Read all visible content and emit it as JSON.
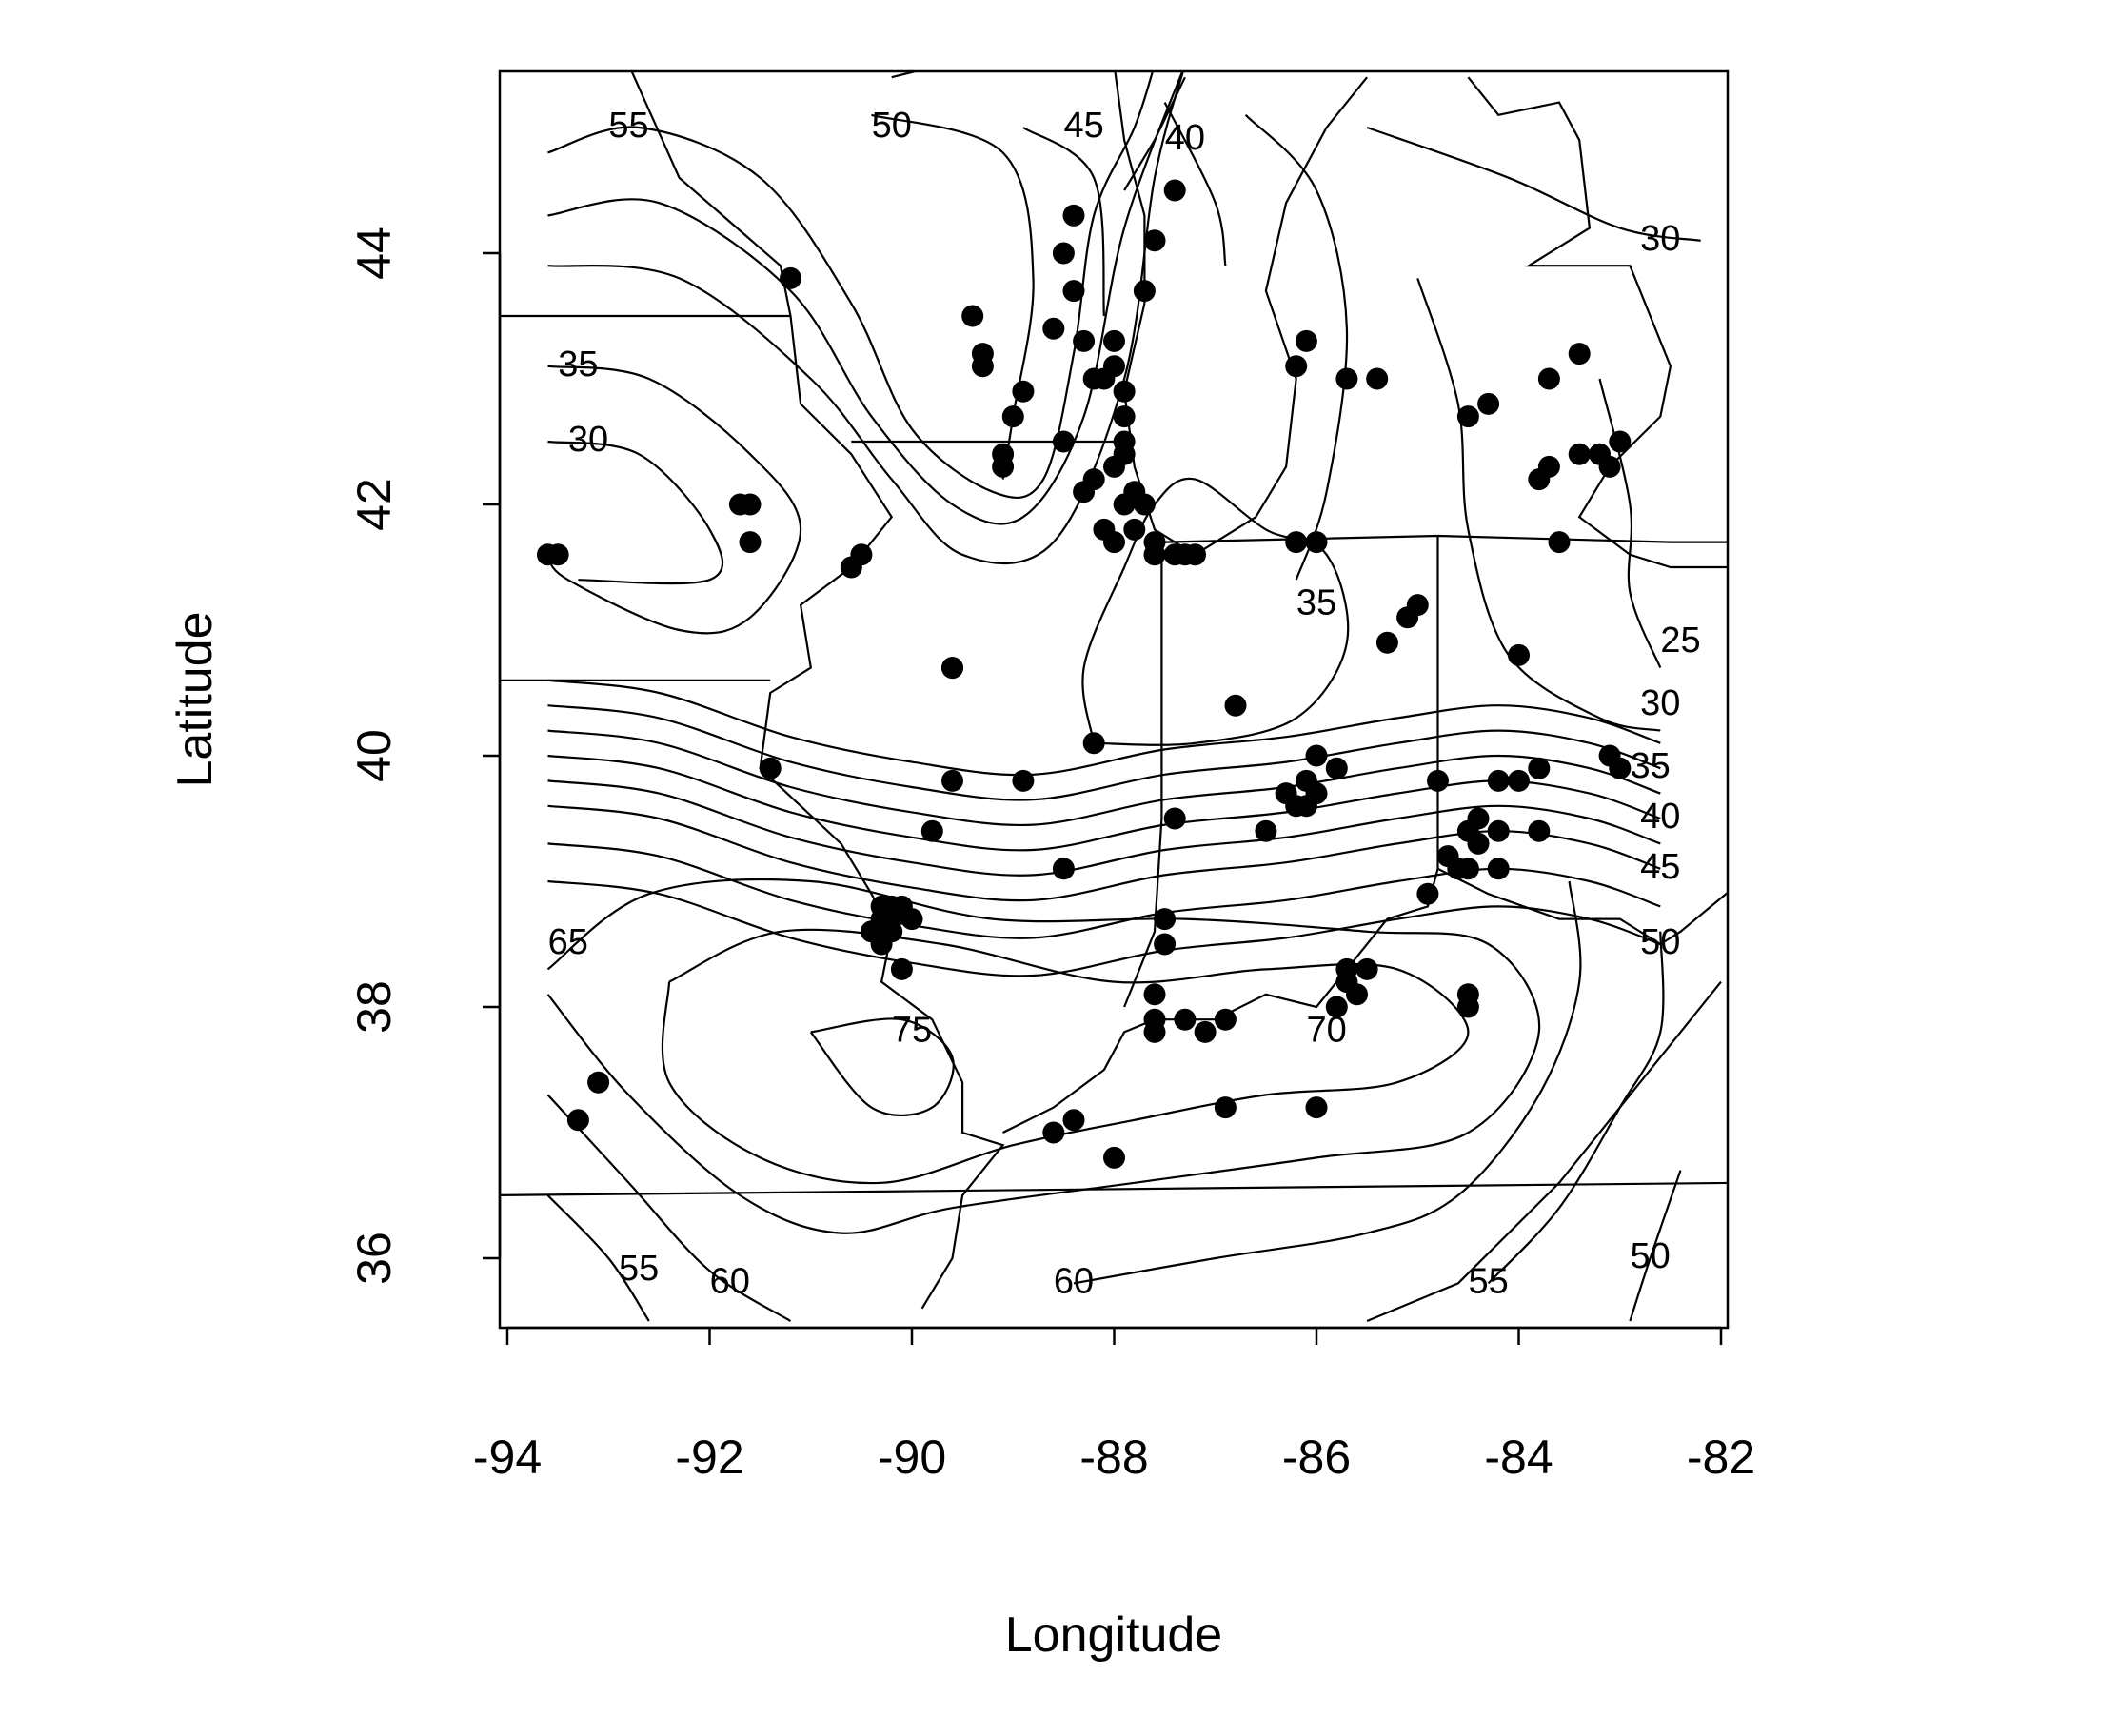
{
  "chart_data": {
    "type": "scatter",
    "subtype": "contour map with station points",
    "title": "",
    "xlabel": "Longitude",
    "ylabel": "Latitude",
    "xlim": [
      -94,
      -82
    ],
    "ylim": [
      35.5,
      45.5
    ],
    "xticks": [
      -94,
      -92,
      -90,
      -88,
      -86,
      -84,
      -82
    ],
    "yticks": [
      36,
      38,
      40,
      42,
      44
    ],
    "xtick_labels": [
      "-94",
      "-92",
      "-90",
      "-88",
      "-86",
      "-84",
      "-82"
    ],
    "ytick_labels": [
      "36",
      "38",
      "40",
      "42",
      "44"
    ],
    "grid": false,
    "legend": "none",
    "stations": [
      [
        -91.2,
        43.8
      ],
      [
        -89.4,
        43.5
      ],
      [
        -89.3,
        43.2
      ],
      [
        -89.3,
        43.1
      ],
      [
        -88.4,
        44.3
      ],
      [
        -88.5,
        44.0
      ],
      [
        -88.4,
        43.7
      ],
      [
        -88.6,
        43.4
      ],
      [
        -88.9,
        42.9
      ],
      [
        -89.0,
        42.7
      ],
      [
        -89.1,
        42.4
      ],
      [
        -89.1,
        42.3
      ],
      [
        -88.5,
        42.5
      ],
      [
        -88.3,
        43.3
      ],
      [
        -88.2,
        43.0
      ],
      [
        -88.0,
        43.3
      ],
      [
        -88.0,
        43.1
      ],
      [
        -88.1,
        43.0
      ],
      [
        -87.9,
        42.9
      ],
      [
        -87.9,
        42.7
      ],
      [
        -87.9,
        42.5
      ],
      [
        -87.9,
        42.4
      ],
      [
        -88.2,
        42.2
      ],
      [
        -88.3,
        42.1
      ],
      [
        -88.0,
        42.3
      ],
      [
        -87.8,
        42.1
      ],
      [
        -87.7,
        42.0
      ],
      [
        -87.9,
        42.0
      ],
      [
        -88.1,
        41.8
      ],
      [
        -88.0,
        41.7
      ],
      [
        -87.8,
        41.8
      ],
      [
        -87.6,
        41.7
      ],
      [
        -87.6,
        41.6
      ],
      [
        -87.4,
        41.6
      ],
      [
        -87.3,
        41.6
      ],
      [
        -87.2,
        41.6
      ],
      [
        -87.7,
        43.7
      ],
      [
        -87.6,
        44.1
      ],
      [
        -87.4,
        44.5
      ],
      [
        -86.1,
        43.3
      ],
      [
        -86.2,
        43.1
      ],
      [
        -85.7,
        43.0
      ],
      [
        -85.4,
        43.0
      ],
      [
        -84.5,
        42.7
      ],
      [
        -84.3,
        42.8
      ],
      [
        -83.7,
        43.0
      ],
      [
        -83.4,
        43.2
      ],
      [
        -83.7,
        42.3
      ],
      [
        -83.8,
        42.2
      ],
      [
        -83.4,
        42.4
      ],
      [
        -83.2,
        42.4
      ],
      [
        -83.0,
        42.5
      ],
      [
        -83.1,
        42.3
      ],
      [
        -83.6,
        41.7
      ],
      [
        -86.2,
        41.7
      ],
      [
        -86.0,
        41.7
      ],
      [
        -85.0,
        41.2
      ],
      [
        -85.1,
        41.1
      ],
      [
        -85.3,
        40.9
      ],
      [
        -84.0,
        40.8
      ],
      [
        -86.8,
        40.4
      ],
      [
        -88.2,
        40.1
      ],
      [
        -89.6,
        40.7
      ],
      [
        -89.6,
        40.7
      ],
      [
        -91.4,
        39.9
      ],
      [
        -89.6,
        39.8
      ],
      [
        -88.9,
        39.8
      ],
      [
        -89.8,
        39.4
      ],
      [
        -88.5,
        39.1
      ],
      [
        -87.4,
        39.5
      ],
      [
        -86.5,
        39.4
      ],
      [
        -86.0,
        40.0
      ],
      [
        -85.8,
        39.9
      ],
      [
        -86.1,
        39.8
      ],
      [
        -86.0,
        39.7
      ],
      [
        -86.3,
        39.7
      ],
      [
        -86.1,
        39.6
      ],
      [
        -86.2,
        39.6
      ],
      [
        -84.8,
        39.8
      ],
      [
        -84.2,
        39.8
      ],
      [
        -84.0,
        39.8
      ],
      [
        -83.8,
        39.9
      ],
      [
        -83.8,
        39.4
      ],
      [
        -83.0,
        39.9
      ],
      [
        -83.1,
        40.0
      ],
      [
        -84.4,
        39.5
      ],
      [
        -84.5,
        39.4
      ],
      [
        -84.2,
        39.4
      ],
      [
        -84.4,
        39.3
      ],
      [
        -84.7,
        39.2
      ],
      [
        -84.6,
        39.1
      ],
      [
        -84.5,
        39.1
      ],
      [
        -84.2,
        39.1
      ],
      [
        -84.9,
        38.9
      ],
      [
        -90.3,
        38.8
      ],
      [
        -90.2,
        38.8
      ],
      [
        -90.1,
        38.8
      ],
      [
        -90.3,
        38.7
      ],
      [
        -90.2,
        38.7
      ],
      [
        -90.0,
        38.7
      ],
      [
        -90.4,
        38.6
      ],
      [
        -90.3,
        38.6
      ],
      [
        -90.2,
        38.6
      ],
      [
        -90.3,
        38.5
      ],
      [
        -90.1,
        38.3
      ],
      [
        -87.5,
        38.7
      ],
      [
        -87.5,
        38.5
      ],
      [
        -85.7,
        38.3
      ],
      [
        -85.5,
        38.3
      ],
      [
        -85.7,
        38.2
      ],
      [
        -85.6,
        38.1
      ],
      [
        -85.8,
        38.0
      ],
      [
        -84.5,
        38.1
      ],
      [
        -84.5,
        38.0
      ],
      [
        -87.6,
        38.1
      ],
      [
        -87.6,
        37.9
      ],
      [
        -87.3,
        37.9
      ],
      [
        -86.9,
        37.9
      ],
      [
        -87.1,
        37.8
      ],
      [
        -87.6,
        37.8
      ],
      [
        -86.9,
        37.2
      ],
      [
        -86.0,
        37.2
      ],
      [
        -88.4,
        37.1
      ],
      [
        -88.6,
        37.0
      ],
      [
        -88.0,
        36.8
      ],
      [
        -93.1,
        37.4
      ],
      [
        -93.3,
        37.1
      ],
      [
        -93.5,
        41.6
      ],
      [
        -93.6,
        41.6
      ],
      [
        -91.6,
        42.0
      ],
      [
        -91.6,
        41.7
      ],
      [
        -91.7,
        42.0
      ],
      [
        -90.5,
        41.6
      ],
      [
        -90.6,
        41.5
      ]
    ],
    "contour_levels": [
      {
        "label": "55",
        "lon": -92.8,
        "lat": 45.0
      },
      {
        "label": "50",
        "lon": -90.2,
        "lat": 45.0
      },
      {
        "label": "45",
        "lon": -88.3,
        "lat": 45.0
      },
      {
        "label": "40",
        "lon": -87.3,
        "lat": 44.9
      },
      {
        "label": "30",
        "lon": -82.6,
        "lat": 44.1
      },
      {
        "label": "35",
        "lon": -93.3,
        "lat": 43.1
      },
      {
        "label": "30",
        "lon": -93.2,
        "lat": 42.5
      },
      {
        "label": "35",
        "lon": -86.0,
        "lat": 41.2
      },
      {
        "label": "25",
        "lon": -82.4,
        "lat": 40.9
      },
      {
        "label": "30",
        "lon": -82.6,
        "lat": 40.4
      },
      {
        "label": "35",
        "lon": -82.7,
        "lat": 39.9
      },
      {
        "label": "40",
        "lon": -82.6,
        "lat": 39.5
      },
      {
        "label": "45",
        "lon": -82.6,
        "lat": 39.1
      },
      {
        "label": "65",
        "lon": -93.4,
        "lat": 38.5
      },
      {
        "label": "50",
        "lon": -82.6,
        "lat": 38.5
      },
      {
        "label": "75",
        "lon": -90.0,
        "lat": 37.8
      },
      {
        "label": "70",
        "lon": -85.9,
        "lat": 37.8
      },
      {
        "label": "55",
        "lon": -92.7,
        "lat": 35.9
      },
      {
        "label": "60",
        "lon": -91.8,
        "lat": 35.8
      },
      {
        "label": "60",
        "lon": -88.4,
        "lat": 35.8
      },
      {
        "label": "55",
        "lon": -84.3,
        "lat": 35.8
      },
      {
        "label": "50",
        "lon": -82.7,
        "lat": 36.0
      }
    ]
  }
}
